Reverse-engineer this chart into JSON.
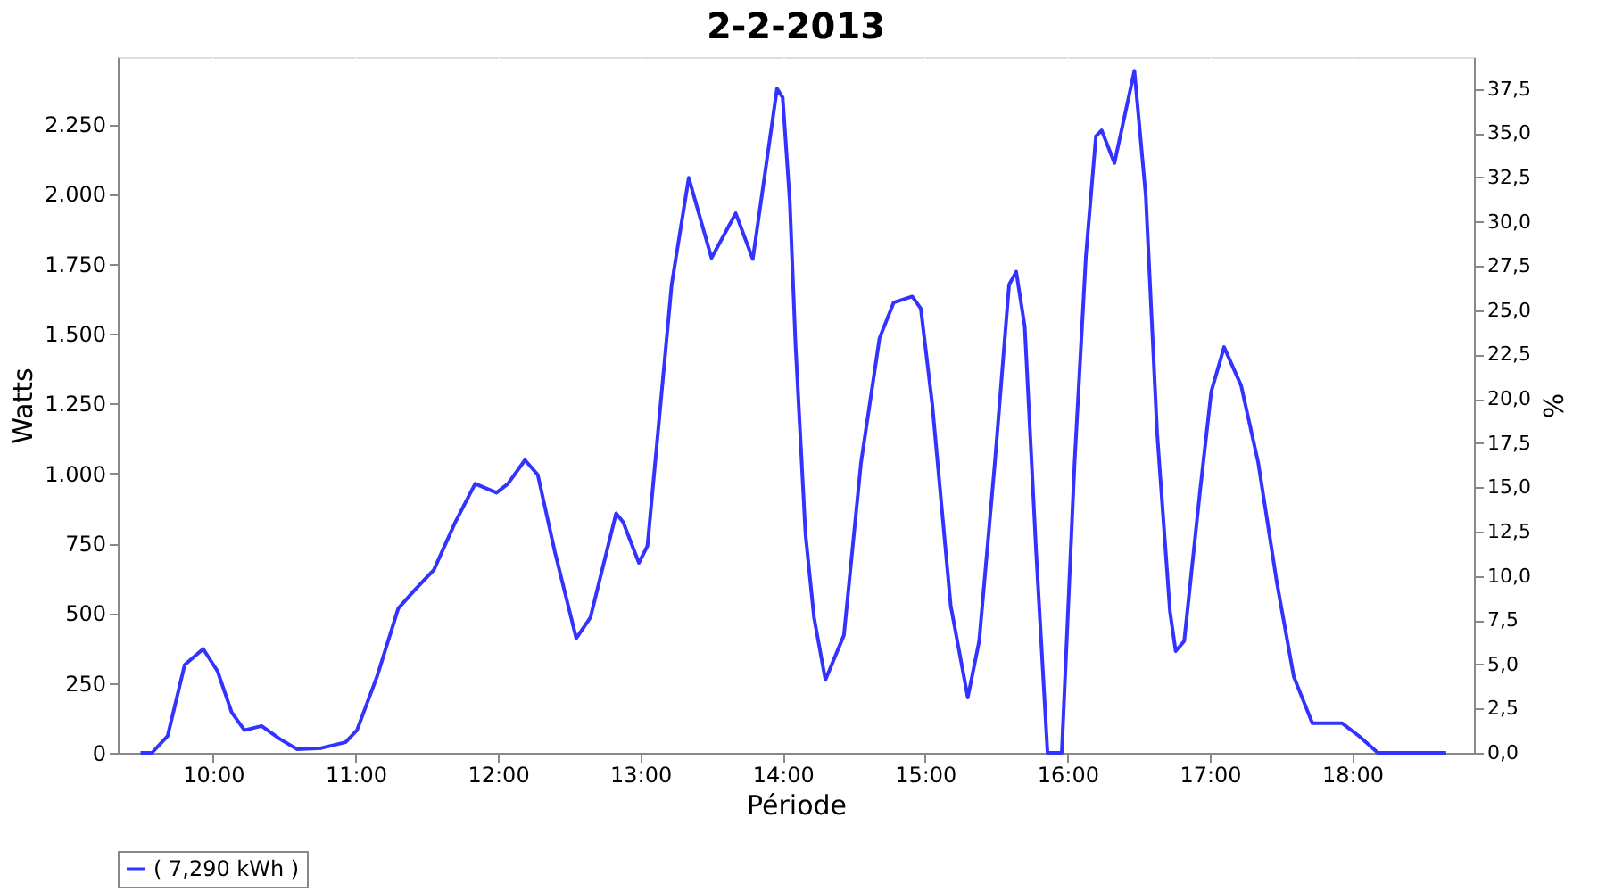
{
  "chart_data": {
    "type": "line",
    "title": "2-2-2013",
    "xlabel": "Période",
    "ylabel": "Watts",
    "y2label": "%",
    "x": [
      9.49,
      9.57,
      9.68,
      9.8,
      9.93,
      10.03,
      10.13,
      10.22,
      10.34,
      10.47,
      10.59,
      10.76,
      10.93,
      11.01,
      11.15,
      11.3,
      11.41,
      11.55,
      11.7,
      11.84,
      11.99,
      12.07,
      12.19,
      12.28,
      12.4,
      12.55,
      12.65,
      12.83,
      12.88,
      12.99,
      13.05,
      13.22,
      13.34,
      13.5,
      13.67,
      13.79,
      13.96,
      14.0,
      14.05,
      14.09,
      14.16,
      14.22,
      14.3,
      14.43,
      14.55,
      14.68,
      14.78,
      14.91,
      14.97,
      15.05,
      15.18,
      15.3,
      15.38,
      15.49,
      15.59,
      15.64,
      15.7,
      15.78,
      15.86,
      15.96,
      16.05,
      16.13,
      16.2,
      16.24,
      16.33,
      16.47,
      16.55,
      16.63,
      16.72,
      16.76,
      16.82,
      16.93,
      17.01,
      17.1,
      17.22,
      17.34,
      17.47,
      17.59,
      17.72,
      17.93,
      18.05,
      18.18,
      18.34,
      18.42,
      18.66
    ],
    "series": [
      {
        "name": "( 7,290 kWh )",
        "color": "#3333ff",
        "values": [
          0,
          0,
          60,
          315,
          372,
          293,
          145,
          81,
          96,
          49,
          13,
          17,
          38,
          81,
          272,
          517,
          580,
          655,
          825,
          963,
          931,
          963,
          1048,
          995,
          719,
          410,
          485,
          857,
          825,
          680,
          740,
          1675,
          2058,
          1771,
          1931,
          1767,
          2377,
          2345,
          1973,
          1462,
          783,
          485,
          261,
          421,
          1038,
          1484,
          1612,
          1633,
          1590,
          1250,
          527,
          198,
          400,
          1038,
          1675,
          1722,
          1526,
          719,
          0,
          0,
          1038,
          1781,
          2207,
          2228,
          2111,
          2441,
          1994,
          1144,
          506,
          364,
          400,
          931,
          1293,
          1452,
          1314,
          1038,
          612,
          272,
          106,
          106,
          59,
          0,
          0,
          0,
          0
        ]
      }
    ],
    "xlim": [
      9.33,
      18.855
    ],
    "xticks": [
      {
        "value": 10,
        "label": "10:00"
      },
      {
        "value": 11,
        "label": "11:00"
      },
      {
        "value": 12,
        "label": "12:00"
      },
      {
        "value": 13,
        "label": "13:00"
      },
      {
        "value": 14,
        "label": "14:00"
      },
      {
        "value": 15,
        "label": "15:00"
      },
      {
        "value": 16,
        "label": "16:00"
      },
      {
        "value": 17,
        "label": "17:00"
      },
      {
        "value": 18,
        "label": "18:00"
      }
    ],
    "ylim": [
      0,
      2490
    ],
    "yticks": [
      0,
      250,
      500,
      750,
      {
        "value": 1000,
        "label": "1.000"
      },
      {
        "value": 1250,
        "label": "1.250"
      },
      {
        "value": 1500,
        "label": "1.500"
      },
      {
        "value": 1750,
        "label": "1.750"
      },
      {
        "value": 2000,
        "label": "2.000"
      },
      {
        "value": 2250,
        "label": "2.250"
      }
    ],
    "y2lim": [
      0,
      39.3
    ],
    "y2ticks": [
      {
        "value": 0,
        "label": "0,0"
      },
      {
        "value": 2.5,
        "label": "2,5"
      },
      {
        "value": 5,
        "label": "5,0"
      },
      {
        "value": 7.5,
        "label": "7,5"
      },
      {
        "value": 10,
        "label": "10,0"
      },
      {
        "value": 12.5,
        "label": "12,5"
      },
      {
        "value": 15,
        "label": "15,0"
      },
      {
        "value": 17.5,
        "label": "17,5"
      },
      {
        "value": 20,
        "label": "20,0"
      },
      {
        "value": 22.5,
        "label": "22,5"
      },
      {
        "value": 25,
        "label": "25,0"
      },
      {
        "value": 27.5,
        "label": "27,5"
      },
      {
        "value": 30,
        "label": "30,0"
      },
      {
        "value": 32.5,
        "label": "32,5"
      },
      {
        "value": 35,
        "label": "35,0"
      },
      {
        "value": 37.5,
        "label": "37,5"
      }
    ],
    "grid": true,
    "legend": "bottom",
    "marker": "none",
    "line_style": "solid"
  }
}
